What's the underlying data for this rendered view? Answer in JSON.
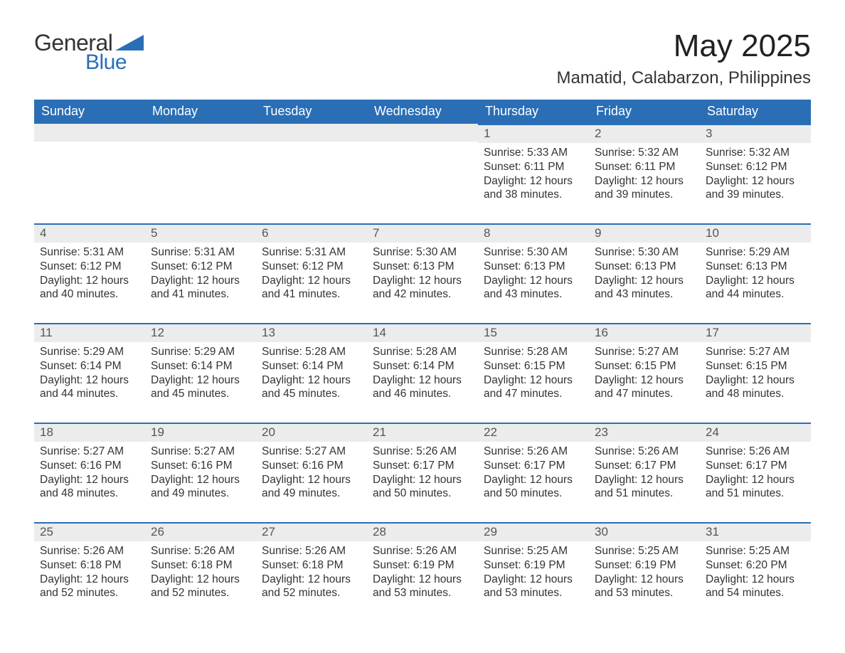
{
  "logo": {
    "text1": "General",
    "text2": "Blue",
    "shape_color": "#2a6eb6"
  },
  "title": "May 2025",
  "location": "Mamatid, Calabarzon, Philippines",
  "weekday_headers": [
    "Sunday",
    "Monday",
    "Tuesday",
    "Wednesday",
    "Thursday",
    "Friday",
    "Saturday"
  ],
  "theme": {
    "header_bg": "#2a6eb6",
    "header_text": "#ffffff",
    "daybar_bg": "#ececec",
    "daybar_border": "#2a6eb6",
    "body_text": "#333333"
  },
  "weeks": [
    [
      {
        "empty": true
      },
      {
        "empty": true
      },
      {
        "empty": true
      },
      {
        "empty": true
      },
      {
        "day": "1",
        "sunrise": "Sunrise: 5:33 AM",
        "sunset": "Sunset: 6:11 PM",
        "daylight": "Daylight: 12 hours and 38 minutes."
      },
      {
        "day": "2",
        "sunrise": "Sunrise: 5:32 AM",
        "sunset": "Sunset: 6:11 PM",
        "daylight": "Daylight: 12 hours and 39 minutes."
      },
      {
        "day": "3",
        "sunrise": "Sunrise: 5:32 AM",
        "sunset": "Sunset: 6:12 PM",
        "daylight": "Daylight: 12 hours and 39 minutes."
      }
    ],
    [
      {
        "day": "4",
        "sunrise": "Sunrise: 5:31 AM",
        "sunset": "Sunset: 6:12 PM",
        "daylight": "Daylight: 12 hours and 40 minutes."
      },
      {
        "day": "5",
        "sunrise": "Sunrise: 5:31 AM",
        "sunset": "Sunset: 6:12 PM",
        "daylight": "Daylight: 12 hours and 41 minutes."
      },
      {
        "day": "6",
        "sunrise": "Sunrise: 5:31 AM",
        "sunset": "Sunset: 6:12 PM",
        "daylight": "Daylight: 12 hours and 41 minutes."
      },
      {
        "day": "7",
        "sunrise": "Sunrise: 5:30 AM",
        "sunset": "Sunset: 6:13 PM",
        "daylight": "Daylight: 12 hours and 42 minutes."
      },
      {
        "day": "8",
        "sunrise": "Sunrise: 5:30 AM",
        "sunset": "Sunset: 6:13 PM",
        "daylight": "Daylight: 12 hours and 43 minutes."
      },
      {
        "day": "9",
        "sunrise": "Sunrise: 5:30 AM",
        "sunset": "Sunset: 6:13 PM",
        "daylight": "Daylight: 12 hours and 43 minutes."
      },
      {
        "day": "10",
        "sunrise": "Sunrise: 5:29 AM",
        "sunset": "Sunset: 6:13 PM",
        "daylight": "Daylight: 12 hours and 44 minutes."
      }
    ],
    [
      {
        "day": "11",
        "sunrise": "Sunrise: 5:29 AM",
        "sunset": "Sunset: 6:14 PM",
        "daylight": "Daylight: 12 hours and 44 minutes."
      },
      {
        "day": "12",
        "sunrise": "Sunrise: 5:29 AM",
        "sunset": "Sunset: 6:14 PM",
        "daylight": "Daylight: 12 hours and 45 minutes."
      },
      {
        "day": "13",
        "sunrise": "Sunrise: 5:28 AM",
        "sunset": "Sunset: 6:14 PM",
        "daylight": "Daylight: 12 hours and 45 minutes."
      },
      {
        "day": "14",
        "sunrise": "Sunrise: 5:28 AM",
        "sunset": "Sunset: 6:14 PM",
        "daylight": "Daylight: 12 hours and 46 minutes."
      },
      {
        "day": "15",
        "sunrise": "Sunrise: 5:28 AM",
        "sunset": "Sunset: 6:15 PM",
        "daylight": "Daylight: 12 hours and 47 minutes."
      },
      {
        "day": "16",
        "sunrise": "Sunrise: 5:27 AM",
        "sunset": "Sunset: 6:15 PM",
        "daylight": "Daylight: 12 hours and 47 minutes."
      },
      {
        "day": "17",
        "sunrise": "Sunrise: 5:27 AM",
        "sunset": "Sunset: 6:15 PM",
        "daylight": "Daylight: 12 hours and 48 minutes."
      }
    ],
    [
      {
        "day": "18",
        "sunrise": "Sunrise: 5:27 AM",
        "sunset": "Sunset: 6:16 PM",
        "daylight": "Daylight: 12 hours and 48 minutes."
      },
      {
        "day": "19",
        "sunrise": "Sunrise: 5:27 AM",
        "sunset": "Sunset: 6:16 PM",
        "daylight": "Daylight: 12 hours and 49 minutes."
      },
      {
        "day": "20",
        "sunrise": "Sunrise: 5:27 AM",
        "sunset": "Sunset: 6:16 PM",
        "daylight": "Daylight: 12 hours and 49 minutes."
      },
      {
        "day": "21",
        "sunrise": "Sunrise: 5:26 AM",
        "sunset": "Sunset: 6:17 PM",
        "daylight": "Daylight: 12 hours and 50 minutes."
      },
      {
        "day": "22",
        "sunrise": "Sunrise: 5:26 AM",
        "sunset": "Sunset: 6:17 PM",
        "daylight": "Daylight: 12 hours and 50 minutes."
      },
      {
        "day": "23",
        "sunrise": "Sunrise: 5:26 AM",
        "sunset": "Sunset: 6:17 PM",
        "daylight": "Daylight: 12 hours and 51 minutes."
      },
      {
        "day": "24",
        "sunrise": "Sunrise: 5:26 AM",
        "sunset": "Sunset: 6:17 PM",
        "daylight": "Daylight: 12 hours and 51 minutes."
      }
    ],
    [
      {
        "day": "25",
        "sunrise": "Sunrise: 5:26 AM",
        "sunset": "Sunset: 6:18 PM",
        "daylight": "Daylight: 12 hours and 52 minutes."
      },
      {
        "day": "26",
        "sunrise": "Sunrise: 5:26 AM",
        "sunset": "Sunset: 6:18 PM",
        "daylight": "Daylight: 12 hours and 52 minutes."
      },
      {
        "day": "27",
        "sunrise": "Sunrise: 5:26 AM",
        "sunset": "Sunset: 6:18 PM",
        "daylight": "Daylight: 12 hours and 52 minutes."
      },
      {
        "day": "28",
        "sunrise": "Sunrise: 5:26 AM",
        "sunset": "Sunset: 6:19 PM",
        "daylight": "Daylight: 12 hours and 53 minutes."
      },
      {
        "day": "29",
        "sunrise": "Sunrise: 5:25 AM",
        "sunset": "Sunset: 6:19 PM",
        "daylight": "Daylight: 12 hours and 53 minutes."
      },
      {
        "day": "30",
        "sunrise": "Sunrise: 5:25 AM",
        "sunset": "Sunset: 6:19 PM",
        "daylight": "Daylight: 12 hours and 53 minutes."
      },
      {
        "day": "31",
        "sunrise": "Sunrise: 5:25 AM",
        "sunset": "Sunset: 6:20 PM",
        "daylight": "Daylight: 12 hours and 54 minutes."
      }
    ]
  ]
}
